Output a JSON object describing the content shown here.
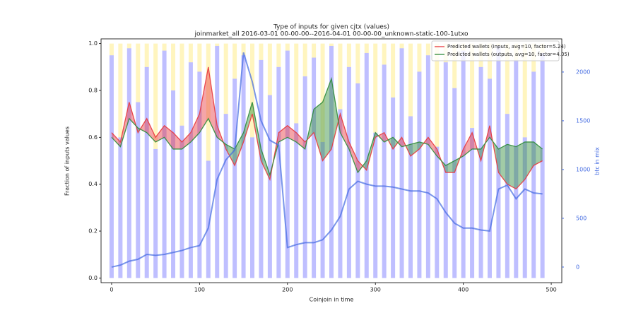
{
  "chart_data": {
    "type": "combo",
    "title": "Type of inputs for given cjtx (values)",
    "subtitle": "joinmarket_all 2016-03-01 00-00-00--2016-04-01 00-00-00_unknown-static-100-1utxo",
    "x_label": "Coinjoin in time",
    "y_label": "Fraction of inputs values",
    "y2_label": "btc in mix",
    "x": [
      0,
      10,
      20,
      30,
      40,
      50,
      60,
      70,
      80,
      90,
      100,
      110,
      120,
      130,
      140,
      150,
      160,
      170,
      180,
      190,
      200,
      210,
      220,
      230,
      240,
      250,
      260,
      270,
      280,
      290,
      300,
      310,
      320,
      330,
      340,
      350,
      360,
      370,
      380,
      390,
      400,
      410,
      420,
      430,
      440,
      450,
      460,
      470,
      480,
      490
    ],
    "series": [
      {
        "kind": "bar",
        "color": "#0000ff",
        "values": [
          0.95,
          0.6,
          0.98,
          0.75,
          0.9,
          0.55,
          0.97,
          0.8,
          0.65,
          0.92,
          0.88,
          0.5,
          0.99,
          0.7,
          0.85,
          0.95,
          0.6,
          0.93,
          0.78,
          0.9,
          0.97,
          0.66,
          0.86,
          0.94,
          0.58,
          0.99,
          0.72,
          0.9,
          0.83,
          0.96,
          0.62,
          0.91,
          0.77,
          0.98,
          0.69,
          0.88,
          0.95,
          0.56,
          0.92,
          0.81,
          0.97,
          0.64,
          0.9,
          0.85,
          0.99,
          0.7,
          0.93,
          0.6,
          0.88,
          0.96
        ]
      },
      {
        "kind": "bar",
        "color": "#ffd700",
        "values": [
          0.05,
          0.4,
          0.02,
          0.25,
          0.1,
          0.45,
          0.03,
          0.2,
          0.35,
          0.08,
          0.12,
          0.5,
          0.01,
          0.3,
          0.15,
          0.05,
          0.4,
          0.07,
          0.22,
          0.1,
          0.03,
          0.34,
          0.14,
          0.06,
          0.42,
          0.01,
          0.28,
          0.1,
          0.17,
          0.04,
          0.38,
          0.09,
          0.23,
          0.02,
          0.31,
          0.12,
          0.05,
          0.44,
          0.08,
          0.19,
          0.03,
          0.36,
          0.1,
          0.15,
          0.01,
          0.3,
          0.07,
          0.4,
          0.12,
          0.04
        ]
      },
      {
        "kind": "line",
        "name": "Predicted wallets (inputs, avg=10, factor=5.24)",
        "color": "#e8383d",
        "values": [
          0.62,
          0.58,
          0.75,
          0.62,
          0.68,
          0.6,
          0.65,
          0.62,
          0.58,
          0.62,
          0.7,
          0.9,
          0.65,
          0.55,
          0.48,
          0.58,
          0.7,
          0.5,
          0.42,
          0.62,
          0.65,
          0.62,
          0.58,
          0.62,
          0.5,
          0.55,
          0.7,
          0.58,
          0.5,
          0.46,
          0.6,
          0.62,
          0.55,
          0.6,
          0.52,
          0.55,
          0.6,
          0.55,
          0.45,
          0.45,
          0.55,
          0.62,
          0.5,
          0.65,
          0.45,
          0.4,
          0.38,
          0.42,
          0.48,
          0.5
        ]
      },
      {
        "kind": "line",
        "name": "Predicted wallets (outputs, avg=10, factor=4.05)",
        "color": "#2e8b3a",
        "values": [
          0.6,
          0.56,
          0.68,
          0.64,
          0.62,
          0.58,
          0.6,
          0.55,
          0.55,
          0.58,
          0.62,
          0.68,
          0.6,
          0.57,
          0.55,
          0.62,
          0.75,
          0.55,
          0.44,
          0.58,
          0.6,
          0.58,
          0.55,
          0.72,
          0.75,
          0.85,
          0.62,
          0.55,
          0.45,
          0.5,
          0.62,
          0.58,
          0.6,
          0.56,
          0.57,
          0.58,
          0.57,
          0.52,
          0.48,
          0.5,
          0.52,
          0.55,
          0.55,
          0.6,
          0.55,
          0.57,
          0.56,
          0.58,
          0.58,
          0.55
        ]
      },
      {
        "kind": "line",
        "axis": "y2",
        "color": "#4169e1",
        "values": [
          0,
          20,
          60,
          80,
          130,
          120,
          130,
          150,
          170,
          200,
          220,
          400,
          900,
          1100,
          1200,
          2200,
          1900,
          1500,
          1300,
          1250,
          200,
          230,
          250,
          250,
          280,
          380,
          520,
          800,
          880,
          850,
          830,
          830,
          820,
          800,
          780,
          780,
          760,
          700,
          560,
          450,
          400,
          400,
          380,
          370,
          800,
          840,
          700,
          800,
          760,
          750
        ]
      }
    ],
    "fill_between": true,
    "xlim": [
      -12,
      512
    ],
    "ylim": [
      -0.02,
      1.02
    ],
    "y2lim": [
      -160,
      2340
    ],
    "xticks": [
      0,
      100,
      200,
      300,
      400,
      500
    ],
    "yticks": [
      {
        "value": 0,
        "label": "0.0"
      },
      0.2,
      0.4,
      0.6,
      0.8,
      {
        "value": 1,
        "label": "1.0"
      }
    ],
    "y2ticks": [
      0,
      500,
      1000,
      1500,
      2000
    ],
    "legend": "upper right"
  }
}
